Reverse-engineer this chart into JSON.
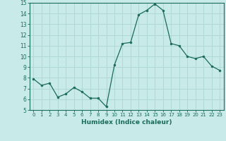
{
  "x": [
    0,
    1,
    2,
    3,
    4,
    5,
    6,
    7,
    8,
    9,
    10,
    11,
    12,
    13,
    14,
    15,
    16,
    17,
    18,
    19,
    20,
    21,
    22,
    23
  ],
  "y": [
    7.9,
    7.3,
    7.5,
    6.2,
    6.5,
    7.1,
    6.7,
    6.1,
    6.1,
    5.3,
    9.2,
    11.2,
    11.3,
    13.9,
    14.3,
    14.9,
    14.3,
    11.2,
    11.0,
    10.0,
    9.8,
    10.0,
    9.1,
    8.7
  ],
  "xlabel": "Humidex (Indice chaleur)",
  "xlim_min": -0.5,
  "xlim_max": 23.5,
  "ylim": [
    5,
    15
  ],
  "yticks": [
    5,
    6,
    7,
    8,
    9,
    10,
    11,
    12,
    13,
    14,
    15
  ],
  "xticks": [
    0,
    1,
    2,
    3,
    4,
    5,
    6,
    7,
    8,
    9,
    10,
    11,
    12,
    13,
    14,
    15,
    16,
    17,
    18,
    19,
    20,
    21,
    22,
    23
  ],
  "line_color": "#1a6b5a",
  "bg_color": "#c8eae8",
  "grid_color": "#b0d8d4"
}
